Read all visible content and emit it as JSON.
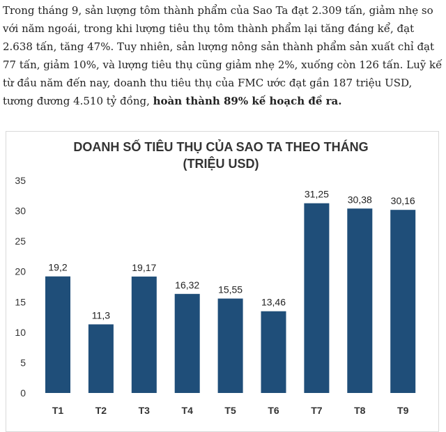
{
  "article": {
    "text": "Trong tháng 9, sản lượng tôm thành phẩm của Sao Ta đạt 2.309 tấn, giảm nhẹ so với năm ngoái, trong khi lượng tiêu thụ tôm thành phẩm lại tăng đáng kể, đạt 2.638 tấn, tăng 47%. Tuy nhiên, sản lượng nông sản thành phẩm sản xuất chỉ đạt 77 tấn, giảm 10%, và lượng tiêu thụ cũng giảm nhẹ 2%, xuống còn 126 tấn. Luỹ kế từ đầu năm đến nay, doanh thu tiêu thụ của FMC ước đạt gần 187 triệu USD, tương đương 4.510 tỷ đồng, ",
    "bold_text": "hoàn thành 89% kế hoạch đề ra."
  },
  "chart_data": {
    "type": "bar",
    "title_line1": "DOANH SỐ TIÊU THỤ CỦA SAO TA THEO THÁNG",
    "title_line2": "(TRIỆU USD)",
    "categories": [
      "T1",
      "T2",
      "T3",
      "T4",
      "T5",
      "T6",
      "T7",
      "T8",
      "T9"
    ],
    "values": [
      19.2,
      11.3,
      19.17,
      16.32,
      15.55,
      13.46,
      31.25,
      30.38,
      30.16
    ],
    "value_labels": [
      "19,2",
      "11,3",
      "19,17",
      "16,32",
      "15,55",
      "13,46",
      "31,25",
      "30,38",
      "30,16"
    ],
    "yticks": [
      0,
      5,
      10,
      15,
      20,
      25,
      30,
      35
    ],
    "ylim": [
      0,
      35
    ],
    "grid": false,
    "bar_color": "#1f4e79"
  }
}
